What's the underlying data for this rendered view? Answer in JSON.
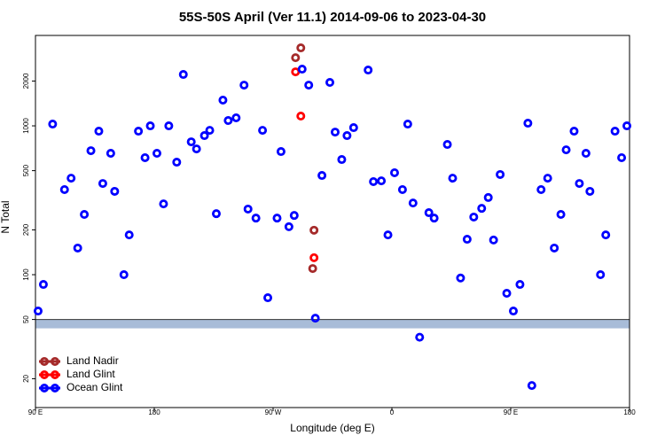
{
  "chart_data": {
    "type": "scatter",
    "title": "55S-50S April (Ver 11.1)   2014-09-06 to 2023-04-30",
    "x_label": "Longitude (deg E)",
    "y_label": "N Total",
    "xlim": [
      90,
      540
    ],
    "xticks": [
      {
        "value": 90,
        "label": "90 E"
      },
      {
        "value": 180,
        "label": "180"
      },
      {
        "value": 270,
        "label": "90 W"
      },
      {
        "value": 360,
        "label": "0"
      },
      {
        "value": 450,
        "label": "90 E"
      },
      {
        "value": 540,
        "label": "180"
      }
    ],
    "ylim": [
      12.8,
      4050
    ],
    "yticks": [
      20,
      50,
      100,
      200,
      500,
      1000,
      2000
    ],
    "log_y": true,
    "threshold": 50,
    "legend": "lower left",
    "series": [
      {
        "name": "Land Nadir",
        "color": "#a52a2a",
        "x": [
          291,
          287,
          301,
          300
        ],
        "values": [
          3340,
          2870,
          199,
          110
        ]
      },
      {
        "name": "Land Glint",
        "color": "#ff0000",
        "x": [
          287,
          291,
          301
        ],
        "values": [
          2306,
          1163,
          130
        ]
      },
      {
        "name": "Ocean Glint",
        "color": "#0000ff",
        "x": [
          92,
          96,
          103,
          112,
          117,
          122,
          127,
          132,
          138,
          141,
          147,
          150,
          157,
          161,
          168,
          173,
          177,
          182,
          187,
          191,
          197,
          202,
          208,
          212,
          218,
          222,
          227,
          232,
          236,
          242,
          248,
          251,
          257,
          262,
          266,
          273,
          276,
          282,
          286,
          292,
          297,
          302,
          307,
          313,
          317,
          322,
          326,
          331,
          342,
          346,
          352,
          357,
          362,
          368,
          372,
          376,
          381,
          388,
          392,
          402,
          406,
          412,
          417,
          422,
          428,
          433,
          437,
          442,
          447,
          452,
          457,
          463,
          466,
          473,
          478,
          483,
          488,
          492,
          498,
          502,
          507,
          510,
          518,
          522,
          529,
          534,
          538
        ],
        "values": [
          57,
          86,
          1028,
          373,
          445,
          151,
          254,
          681,
          921,
          410,
          654,
          363,
          100,
          185,
          921,
          611,
          1000,
          654,
          299,
          1000,
          570,
          2214,
          781,
          700,
          860,
          933,
          257,
          1489,
          1086,
          1132,
          1878,
          276,
          240,
          933,
          70,
          240,
          672,
          210,
          250,
          2404,
          1878,
          51,
          464,
          1958,
          908,
          594,
          860,
          973,
          2371,
          422,
          427,
          185,
          484,
          373,
          1028,
          303,
          38,
          261,
          240,
          750,
          445,
          95,
          173,
          244,
          279,
          330,
          171,
          471,
          75,
          57,
          86,
          1042,
          18,
          373,
          445,
          151,
          254,
          690,
          921,
          410,
          654,
          363,
          100,
          185,
          921,
          611,
          1000
        ]
      }
    ]
  }
}
